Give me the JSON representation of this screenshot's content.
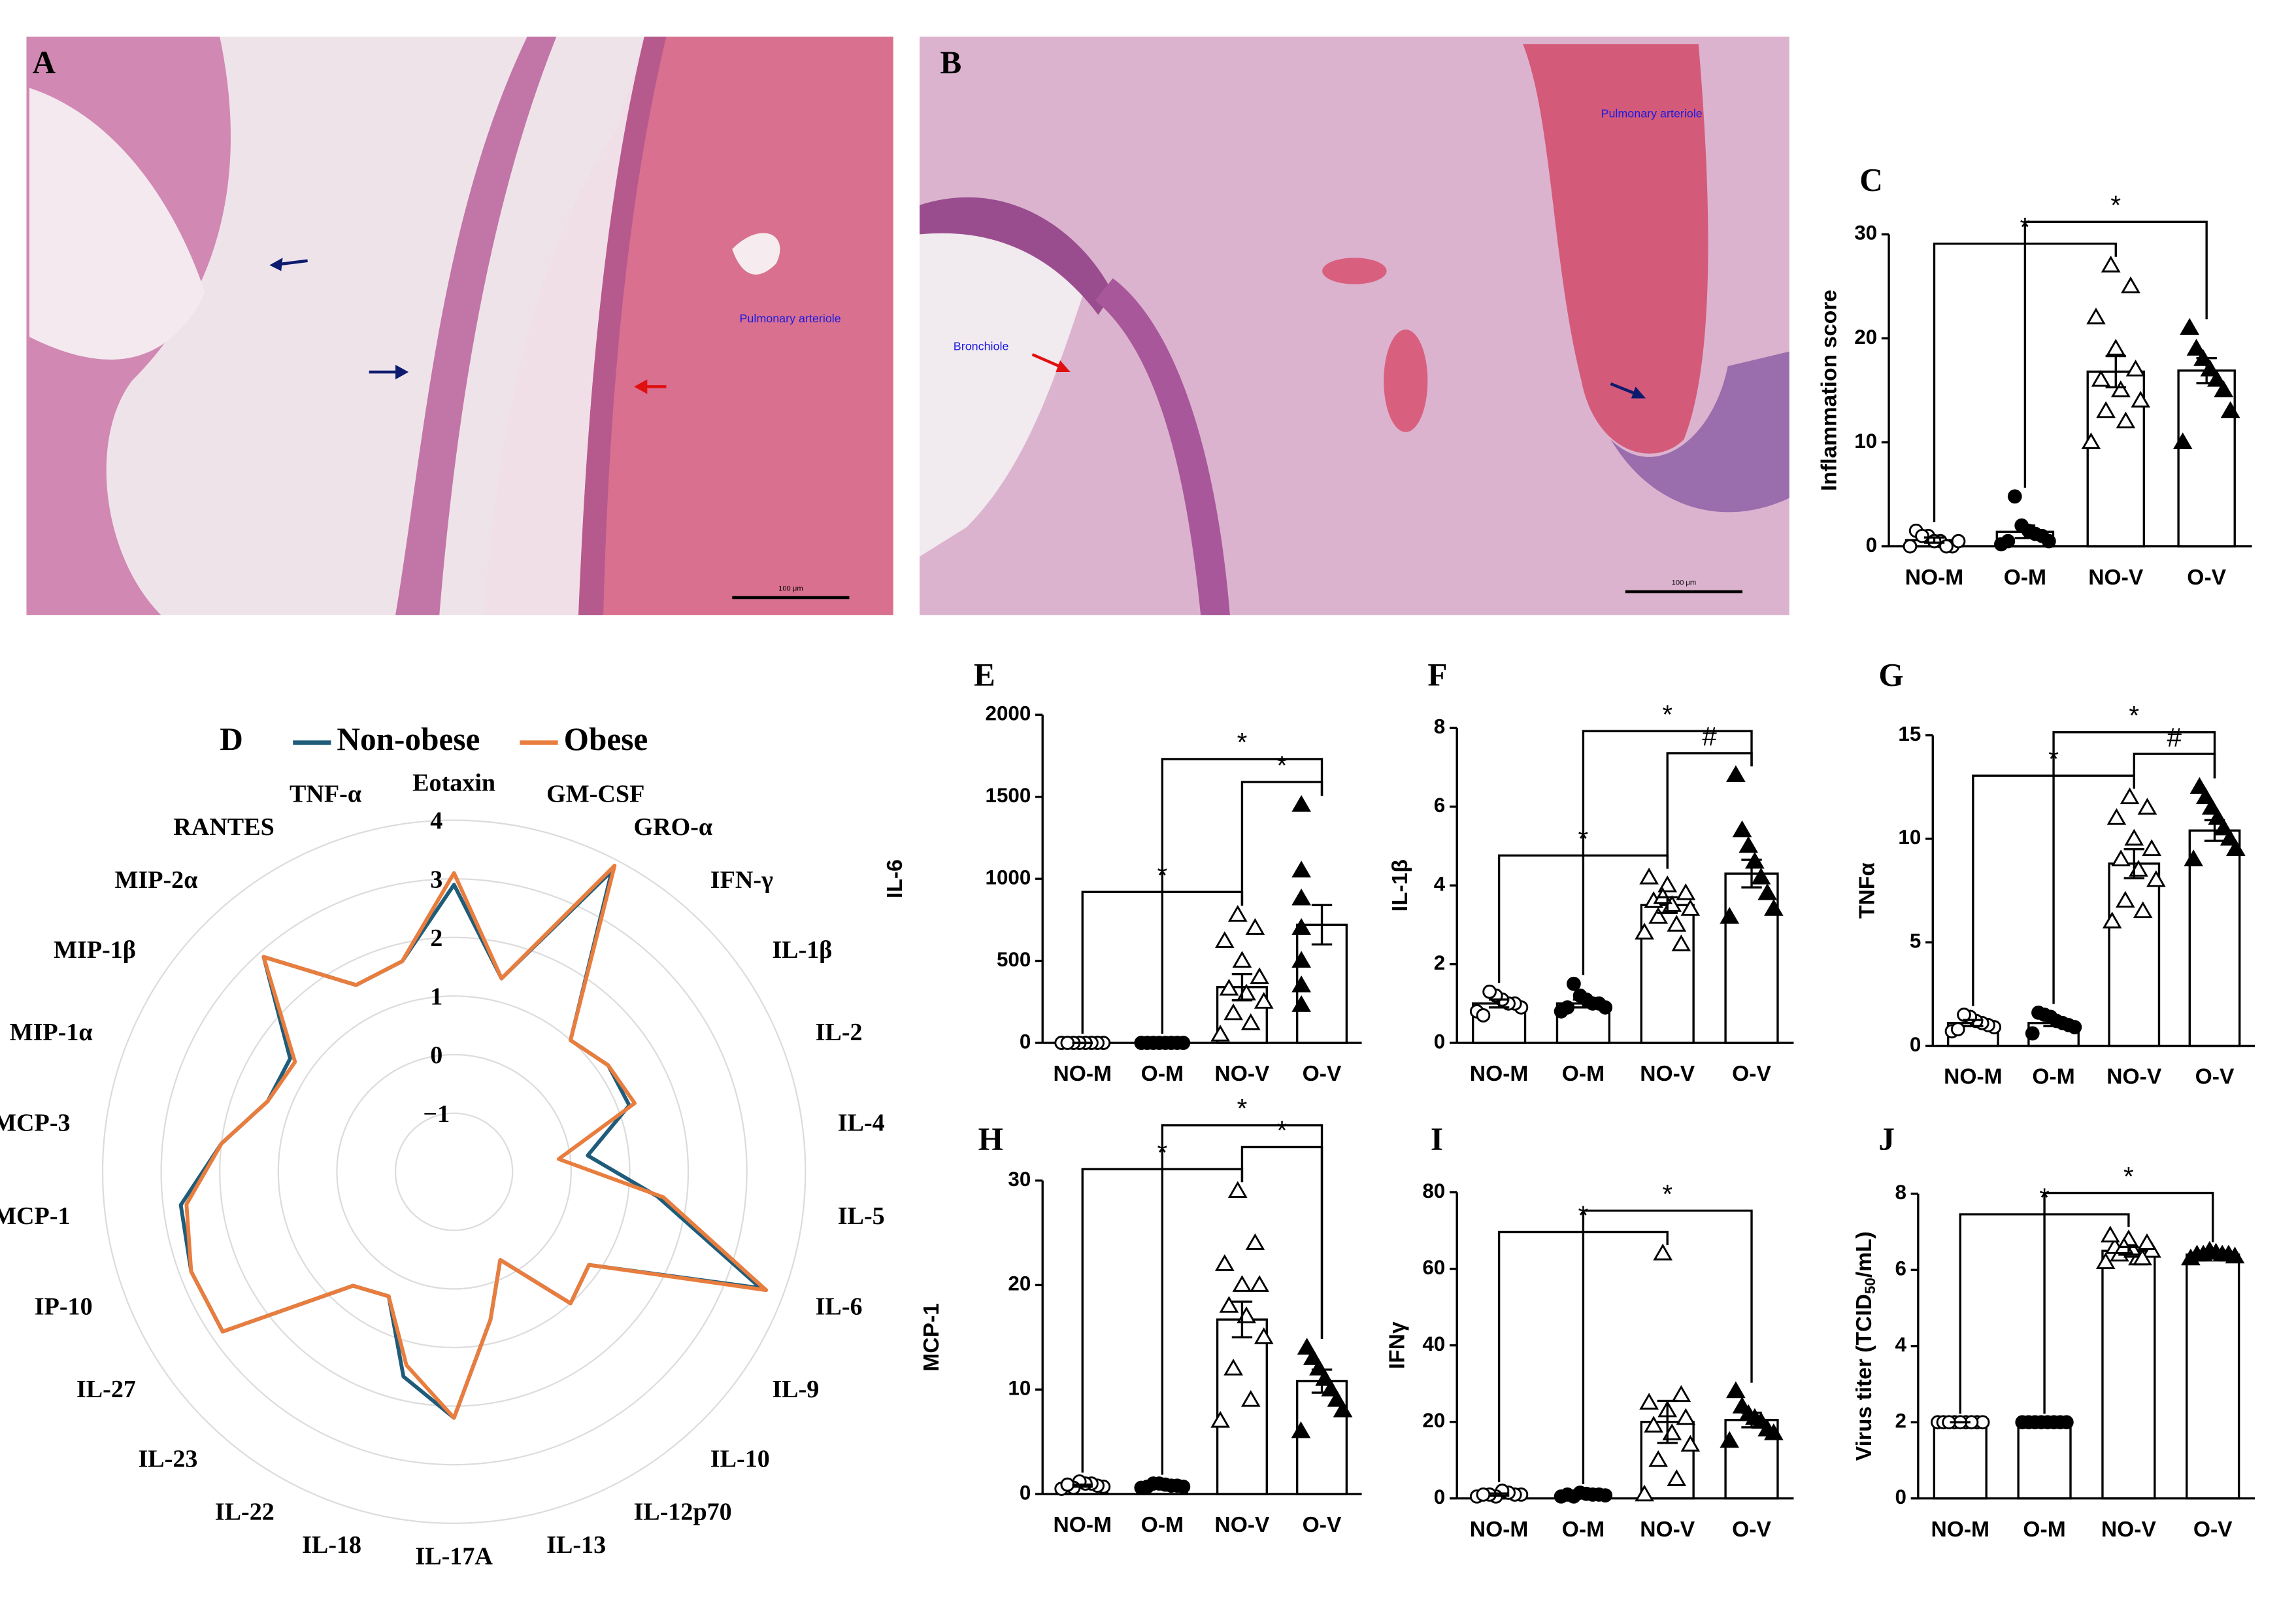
{
  "images": [
    {
      "label": "A",
      "annotations": [
        "Pulmonary arteriole"
      ],
      "scale_bar": "100 μm"
    },
    {
      "label": "B",
      "annotations": [
        "Pulmonary arteriole",
        "Bronchiole"
      ],
      "scale_bar": "100 μm"
    }
  ],
  "chart_data": [
    {
      "type": "bar",
      "panel": "C",
      "ylabel": "Inflammation score",
      "categories": [
        "NO-M",
        "O-M",
        "NO-V",
        "O-V"
      ],
      "markers": [
        "open-circle",
        "filled-circle",
        "open-triangle",
        "filled-triangle"
      ],
      "values": [
        0.6,
        1.4,
        16.8,
        16.9
      ],
      "errors": [
        0.25,
        0.6,
        1.5,
        1.2
      ],
      "points": [
        [
          0,
          0,
          0.5,
          1,
          1.5,
          0.5,
          0,
          0.5,
          1
        ],
        [
          0.2,
          0.5,
          1,
          1.2,
          1.5,
          2,
          4.8,
          0.5
        ],
        [
          10,
          12,
          13,
          14,
          15,
          16,
          17,
          19,
          22,
          25,
          27
        ],
        [
          10,
          13,
          15,
          16,
          17,
          18,
          19,
          21
        ]
      ],
      "ylim": [
        0,
        30
      ],
      "yticks": [
        0,
        10,
        20,
        30
      ],
      "brackets": [
        {
          "from": "NO-M",
          "to": "NO-V",
          "label": "*"
        },
        {
          "from": "O-M",
          "to": "O-V",
          "label": "*"
        }
      ]
    },
    {
      "type": "radar",
      "panel": "D",
      "legend": "top",
      "axes": [
        "Eotaxin",
        "GM-CSF",
        "GRO-α",
        "IFN-γ",
        "IL-1β",
        "IL-2",
        "IL-4",
        "IL-5",
        "IL-6",
        "IL-9",
        "IL-10",
        "IL-12p70",
        "IL-13",
        "IL-17A",
        "IL-18",
        "IL-22",
        "IL-23",
        "IL-27",
        "IP-10",
        "MCP-1",
        "MCP-3",
        "MIP-1α",
        "MIP-1β",
        "MIP-2α",
        "RANTES",
        "TNF-α"
      ],
      "rlim": [
        -2,
        4
      ],
      "rticks": [
        {
          "value": -1,
          "label": "−1"
        },
        0,
        1,
        2,
        3,
        4
      ],
      "series": [
        {
          "name": "Non-obese",
          "color": "#1f5c7a",
          "values": [
            2.9,
            1.4,
            3.8,
            1.0,
            1.2,
            1.2,
            0.3,
            1.5,
            3.6,
            0.8,
            1.0,
            -0.3,
            0.6,
            2.2,
            1.6,
            0.4,
            0.6,
            2.8,
            2.8,
            2.7,
            2.0,
            1.4,
            1.4,
            2.9,
            1.6,
            1.7
          ]
        },
        {
          "name": "Obese",
          "color": "#e87d3e",
          "values": [
            3.1,
            1.4,
            3.9,
            1.0,
            1.2,
            1.3,
            -0.2,
            1.6,
            3.7,
            0.8,
            1.0,
            -0.3,
            0.6,
            2.2,
            1.4,
            0.4,
            0.6,
            2.8,
            2.8,
            2.6,
            2.0,
            1.4,
            1.3,
            2.9,
            1.6,
            1.7
          ]
        }
      ]
    },
    {
      "type": "bar",
      "panel": "E",
      "ylabel": "IL-6",
      "categories": [
        "NO-M",
        "O-M",
        "NO-V",
        "O-V"
      ],
      "markers": [
        "open-circle",
        "filled-circle",
        "open-triangle",
        "filled-triangle"
      ],
      "values": [
        0,
        0,
        340,
        720
      ],
      "errors": [
        0,
        0,
        80,
        120
      ],
      "points": [
        [
          0,
          0,
          0,
          0,
          0,
          0,
          0,
          0
        ],
        [
          0,
          0,
          0,
          0,
          0,
          0,
          0,
          0
        ],
        [
          50,
          120,
          180,
          250,
          300,
          330,
          400,
          500,
          620,
          700,
          780
        ],
        [
          230,
          350,
          500,
          700,
          880,
          1050,
          1450
        ]
      ],
      "ylim": [
        0,
        2000
      ],
      "yticks": [
        0,
        500,
        1000,
        1500,
        2000
      ],
      "brackets": [
        {
          "from": "NO-M",
          "to": "NO-V",
          "label": "*"
        },
        {
          "from": "NO-V",
          "to": "O-V",
          "label": "*"
        },
        {
          "from": "O-M",
          "to": "O-V",
          "label": "*"
        }
      ]
    },
    {
      "type": "bar",
      "panel": "F",
      "ylabel": "IL-1β",
      "categories": [
        "NO-M",
        "O-M",
        "NO-V",
        "O-V"
      ],
      "markers": [
        "open-circle",
        "filled-circle",
        "open-triangle",
        "filled-triangle"
      ],
      "values": [
        1.0,
        1.0,
        3.5,
        4.3
      ],
      "errors": [
        0.1,
        0.1,
        0.2,
        0.35
      ],
      "points": [
        [
          0.8,
          0.9,
          1,
          1,
          1.1,
          1.2,
          1.3,
          0.7
        ],
        [
          0.8,
          0.9,
          1,
          1,
          1.1,
          1.2,
          1.5,
          0.9
        ],
        [
          2.8,
          3,
          3.2,
          3.4,
          3.5,
          3.6,
          3.8,
          4,
          4.2,
          2.5,
          3.7
        ],
        [
          3.2,
          3.4,
          3.8,
          4.2,
          4.6,
          5,
          5.4,
          6.8
        ]
      ],
      "ylim": [
        0,
        8
      ],
      "yticks": [
        0,
        2,
        4,
        6,
        8
      ],
      "brackets": [
        {
          "from": "NO-M",
          "to": "NO-V",
          "label": "*"
        },
        {
          "from": "NO-V",
          "to": "O-V",
          "label": "#"
        },
        {
          "from": "O-M",
          "to": "O-V",
          "label": "*"
        }
      ]
    },
    {
      "type": "bar",
      "panel": "G",
      "ylabel": "TNFα",
      "categories": [
        "NO-M",
        "O-M",
        "NO-V",
        "O-V"
      ],
      "markers": [
        "open-circle",
        "filled-circle",
        "open-triangle",
        "filled-triangle"
      ],
      "values": [
        1.1,
        1.1,
        8.8,
        10.4
      ],
      "errors": [
        0.15,
        0.15,
        0.7,
        0.5
      ],
      "points": [
        [
          0.7,
          0.9,
          1,
          1.1,
          1.2,
          1.4,
          1.5,
          0.8
        ],
        [
          0.6,
          0.9,
          1,
          1.1,
          1.2,
          1.4,
          1.5,
          1.6
        ],
        [
          6,
          6.5,
          7,
          8,
          8.5,
          9,
          9.5,
          10,
          11,
          11.5,
          12
        ],
        [
          9,
          9.5,
          10,
          10.5,
          11,
          11.5,
          12,
          12.5
        ]
      ],
      "ylim": [
        0,
        15
      ],
      "yticks": [
        0,
        5,
        10,
        15
      ],
      "brackets": [
        {
          "from": "NO-M",
          "to": "NO-V",
          "label": "*"
        },
        {
          "from": "NO-V",
          "to": "O-V",
          "label": "#"
        },
        {
          "from": "O-M",
          "to": "O-V",
          "label": "*"
        }
      ]
    },
    {
      "type": "bar",
      "panel": "H",
      "ylabel": "MCP-1",
      "categories": [
        "NO-M",
        "O-M",
        "NO-V",
        "O-V"
      ],
      "markers": [
        "open-circle",
        "filled-circle",
        "open-triangle",
        "filled-triangle"
      ],
      "values": [
        0.8,
        0.8,
        16.7,
        10.8
      ],
      "errors": [
        0.1,
        0.1,
        1.7,
        1.1
      ],
      "points": [
        [
          0.5,
          0.7,
          0.8,
          1,
          1,
          1.2,
          0.6,
          0.9
        ],
        [
          0.6,
          0.7,
          0.8,
          0.8,
          0.9,
          1,
          1,
          0.7
        ],
        [
          7,
          9,
          12,
          15,
          17,
          18,
          20,
          20,
          22,
          24,
          29
        ],
        [
          6,
          8,
          9,
          10,
          11,
          12,
          13,
          14
        ]
      ],
      "ylim": [
        0,
        30
      ],
      "yticks": [
        0,
        10,
        20,
        30
      ],
      "brackets": [
        {
          "from": "NO-M",
          "to": "NO-V",
          "label": "*"
        },
        {
          "from": "NO-V",
          "to": "O-V",
          "label": "*"
        },
        {
          "from": "O-M",
          "to": "O-V",
          "label": "*"
        }
      ]
    },
    {
      "type": "bar",
      "panel": "I",
      "ylabel": "IFNγ",
      "categories": [
        "NO-M",
        "O-M",
        "NO-V",
        "O-V"
      ],
      "markers": [
        "open-circle",
        "filled-circle",
        "open-triangle",
        "filled-triangle"
      ],
      "values": [
        1,
        1,
        20,
        20.5
      ],
      "errors": [
        0.3,
        0.2,
        5.5,
        1.9
      ],
      "points": [
        [
          0.5,
          1,
          1,
          1.5,
          2,
          0.5,
          1,
          1
        ],
        [
          0.5,
          0.8,
          1,
          1,
          1.2,
          1.5,
          0.5,
          1
        ],
        [
          1,
          5,
          10,
          14,
          17,
          19,
          21,
          23,
          25,
          27,
          64
        ],
        [
          15,
          17,
          18,
          20,
          21,
          22,
          24,
          28
        ]
      ],
      "ylim": [
        0,
        80
      ],
      "yticks": [
        0,
        20,
        40,
        60,
        80
      ],
      "brackets": [
        {
          "from": "NO-M",
          "to": "NO-V",
          "label": "*"
        },
        {
          "from": "O-M",
          "to": "O-V",
          "label": "*"
        }
      ]
    },
    {
      "type": "bar",
      "panel": "J",
      "ylabel": "Virus titer (TCID",
      "ylabel_sub": "50",
      "ylabel_end": "/mL)",
      "categories": [
        "NO-M",
        "O-M",
        "NO-V",
        "O-V"
      ],
      "markers": [
        "open-circle",
        "filled-circle",
        "open-triangle",
        "filled-triangle"
      ],
      "values": [
        2,
        2,
        6.5,
        6.4
      ],
      "errors": [
        0,
        0,
        0.1,
        0.05
      ],
      "points": [
        [
          2,
          2,
          2,
          2,
          2,
          2,
          2,
          2,
          2
        ],
        [
          2,
          2,
          2,
          2,
          2,
          2,
          2,
          2
        ],
        [
          6.2,
          6.3,
          6.4,
          6.5,
          6.5,
          6.6,
          6.7,
          6.8,
          6.9,
          6.3,
          6.6
        ],
        [
          6.3,
          6.35,
          6.4,
          6.4,
          6.45,
          6.5,
          6.4,
          6.4
        ]
      ],
      "ylim": [
        0,
        8
      ],
      "yticks": [
        0,
        2,
        4,
        6,
        8
      ],
      "brackets": [
        {
          "from": "NO-M",
          "to": "NO-V",
          "label": "*"
        },
        {
          "from": "O-M",
          "to": "O-V",
          "label": "*"
        }
      ]
    }
  ]
}
